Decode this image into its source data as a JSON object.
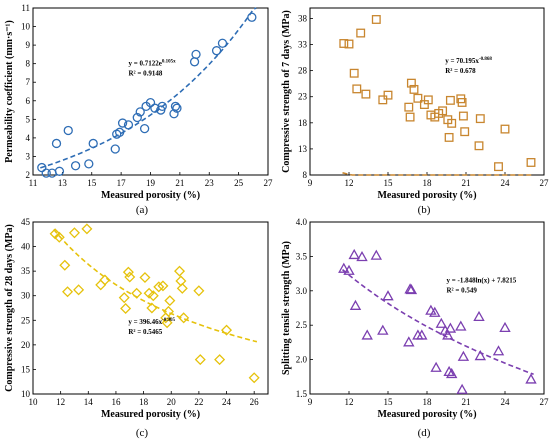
{
  "chart_data": [
    {
      "type": "scatter",
      "panel_label": "(a)",
      "xlabel": "Measured porosity (%)",
      "ylabel": "Permeability coefficient (mm·s⁻¹)",
      "xlim": [
        11,
        27
      ],
      "ylim": [
        2,
        11
      ],
      "xticks": [
        11,
        13,
        15,
        17,
        19,
        21,
        23,
        25,
        27
      ],
      "yticks": [
        2,
        3,
        4,
        5,
        6,
        7,
        8,
        9,
        10,
        11
      ],
      "marker": "circle",
      "color": "#2e6db5",
      "trend": {
        "model": "exp",
        "a": 0.7122,
        "b": 0.105,
        "equation": "y = 0.7122e",
        "exponent": "0.105x",
        "r2": "R² = 0.9148"
      },
      "equation_at": [
        17.5,
        7.9
      ],
      "points": [
        [
          11.6,
          2.4
        ],
        [
          11.9,
          2.1
        ],
        [
          12.3,
          2.1
        ],
        [
          12.6,
          3.7
        ],
        [
          12.8,
          2.2
        ],
        [
          13.4,
          4.4
        ],
        [
          13.9,
          2.5
        ],
        [
          14.8,
          2.6
        ],
        [
          15.1,
          3.7
        ],
        [
          16.6,
          3.4
        ],
        [
          16.7,
          4.2
        ],
        [
          16.9,
          4.3
        ],
        [
          17.1,
          4.8
        ],
        [
          17.5,
          4.7
        ],
        [
          18.1,
          5.1
        ],
        [
          18.3,
          5.4
        ],
        [
          18.6,
          4.5
        ],
        [
          18.7,
          5.7
        ],
        [
          19.0,
          5.9
        ],
        [
          19.3,
          5.6
        ],
        [
          19.7,
          5.5
        ],
        [
          19.8,
          5.7
        ],
        [
          20.6,
          5.3
        ],
        [
          20.7,
          5.7
        ],
        [
          20.8,
          5.6
        ],
        [
          22.0,
          8.1
        ],
        [
          22.1,
          8.5
        ],
        [
          23.5,
          8.7
        ],
        [
          23.9,
          9.1
        ],
        [
          25.9,
          10.5
        ]
      ]
    },
    {
      "type": "scatter",
      "panel_label": "(b)",
      "xlabel": "Measured porosity (%)",
      "ylabel": "Compressive strength of 7 days (MPa)",
      "xlim": [
        9,
        27
      ],
      "ylim": [
        8,
        40
      ],
      "xticks": [
        9,
        12,
        15,
        18,
        21,
        24,
        27
      ],
      "yticks": [
        8,
        13,
        18,
        23,
        28,
        33,
        38
      ],
      "marker": "square",
      "color": "#c8862f",
      "trend": {
        "model": "power",
        "a": 70.195,
        "b": -0.868,
        "equation": "y = 70.195x",
        "exponent": "-0.868",
        "r2": "R² = 0.678"
      },
      "equation_at": [
        19.4,
        29.5
      ],
      "points": [
        [
          11.6,
          33.2
        ],
        [
          12.0,
          33.1
        ],
        [
          12.4,
          27.5
        ],
        [
          12.6,
          24.5
        ],
        [
          12.9,
          35.2
        ],
        [
          13.3,
          23.5
        ],
        [
          14.1,
          37.8
        ],
        [
          14.6,
          22.4
        ],
        [
          15.0,
          23.3
        ],
        [
          16.6,
          21.0
        ],
        [
          16.7,
          19.1
        ],
        [
          16.8,
          25.6
        ],
        [
          17.0,
          24.4
        ],
        [
          17.3,
          22.7
        ],
        [
          17.8,
          21.5
        ],
        [
          18.1,
          22.4
        ],
        [
          18.3,
          19.5
        ],
        [
          18.6,
          19.1
        ],
        [
          18.9,
          19.8
        ],
        [
          19.2,
          20.3
        ],
        [
          19.6,
          18.6
        ],
        [
          19.7,
          15.2
        ],
        [
          19.8,
          22.3
        ],
        [
          19.9,
          17.9
        ],
        [
          20.6,
          22.6
        ],
        [
          20.7,
          21.9
        ],
        [
          20.8,
          19.3
        ],
        [
          20.9,
          16.3
        ],
        [
          22.0,
          13.6
        ],
        [
          22.1,
          18.8
        ],
        [
          23.5,
          9.6
        ],
        [
          24.0,
          16.8
        ],
        [
          26.0,
          10.4
        ]
      ]
    },
    {
      "type": "scatter",
      "panel_label": "(c)",
      "xlabel": "Measured porosity (%)",
      "ylabel": "Compressive strength of 28 days (MPa)",
      "xlim": [
        10,
        27
      ],
      "ylim": [
        10,
        45
      ],
      "xticks": [
        10,
        12,
        14,
        16,
        18,
        20,
        22,
        24,
        26
      ],
      "yticks": [
        10,
        15,
        20,
        25,
        30,
        35,
        40,
        45
      ],
      "marker": "diamond",
      "color": "#e6c20c",
      "trend": {
        "model": "power",
        "a": 396.46,
        "b": -0.905,
        "equation": "y = 396.46x",
        "exponent": "-0.905",
        "r2": "R² = 0.5465"
      },
      "equation_at": [
        16.9,
        24.2
      ],
      "points": [
        [
          11.6,
          42.6
        ],
        [
          11.9,
          41.9
        ],
        [
          12.3,
          36.2
        ],
        [
          12.5,
          30.8
        ],
        [
          13.0,
          42.8
        ],
        [
          13.3,
          31.2
        ],
        [
          13.9,
          43.6
        ],
        [
          14.9,
          32.2
        ],
        [
          15.2,
          33.2
        ],
        [
          16.6,
          29.6
        ],
        [
          16.7,
          27.4
        ],
        [
          16.9,
          34.8
        ],
        [
          17.0,
          33.8
        ],
        [
          17.5,
          30.5
        ],
        [
          18.1,
          33.7
        ],
        [
          18.4,
          30.5
        ],
        [
          18.6,
          27.5
        ],
        [
          18.7,
          30.0
        ],
        [
          19.1,
          31.8
        ],
        [
          19.4,
          32.0
        ],
        [
          19.6,
          25.5
        ],
        [
          19.7,
          24.5
        ],
        [
          19.8,
          26.8
        ],
        [
          19.9,
          29.0
        ],
        [
          20.6,
          35.0
        ],
        [
          20.7,
          33.0
        ],
        [
          20.8,
          31.5
        ],
        [
          20.9,
          25.5
        ],
        [
          22.0,
          31.0
        ],
        [
          22.1,
          17.0
        ],
        [
          23.5,
          17.0
        ],
        [
          24.0,
          23.0
        ],
        [
          26.0,
          13.3
        ]
      ]
    },
    {
      "type": "scatter",
      "panel_label": "(d)",
      "xlabel": "Measured porosity (%)",
      "ylabel": "Splitting tensile strength (MPa)",
      "xlim": [
        9,
        27
      ],
      "ylim": [
        1.5,
        4.0
      ],
      "xticks": [
        9,
        12,
        15,
        18,
        21,
        24,
        27
      ],
      "yticks": [
        1.5,
        2.0,
        2.5,
        3.0,
        3.5,
        4.0
      ],
      "marker": "triangle",
      "color": "#7b3fb0",
      "trend": {
        "model": "log",
        "a": -1.848,
        "b": 7.8215,
        "equation": "y = -1.848ln(x) + 7.8215",
        "exponent": "",
        "r2": "R² = 0.549"
      },
      "equation_at": [
        19.5,
        3.12
      ],
      "points": [
        [
          11.6,
          3.32
        ],
        [
          12.0,
          3.29
        ],
        [
          12.4,
          3.52
        ],
        [
          12.5,
          2.78
        ],
        [
          13.0,
          3.49
        ],
        [
          13.4,
          2.35
        ],
        [
          14.1,
          3.51
        ],
        [
          14.6,
          2.42
        ],
        [
          15.0,
          2.92
        ],
        [
          16.6,
          2.25
        ],
        [
          16.7,
          3.02
        ],
        [
          16.8,
          3.01
        ],
        [
          17.3,
          2.35
        ],
        [
          17.6,
          2.35
        ],
        [
          18.3,
          2.71
        ],
        [
          18.6,
          2.68
        ],
        [
          18.7,
          1.88
        ],
        [
          19.1,
          2.52
        ],
        [
          19.4,
          2.42
        ],
        [
          19.6,
          2.35
        ],
        [
          19.7,
          1.82
        ],
        [
          19.8,
          2.45
        ],
        [
          19.9,
          1.79
        ],
        [
          20.6,
          2.48
        ],
        [
          20.7,
          1.56
        ],
        [
          20.8,
          2.04
        ],
        [
          22.0,
          2.62
        ],
        [
          22.1,
          2.05
        ],
        [
          23.5,
          2.12
        ],
        [
          24.0,
          2.46
        ],
        [
          26.0,
          1.71
        ]
      ]
    }
  ]
}
